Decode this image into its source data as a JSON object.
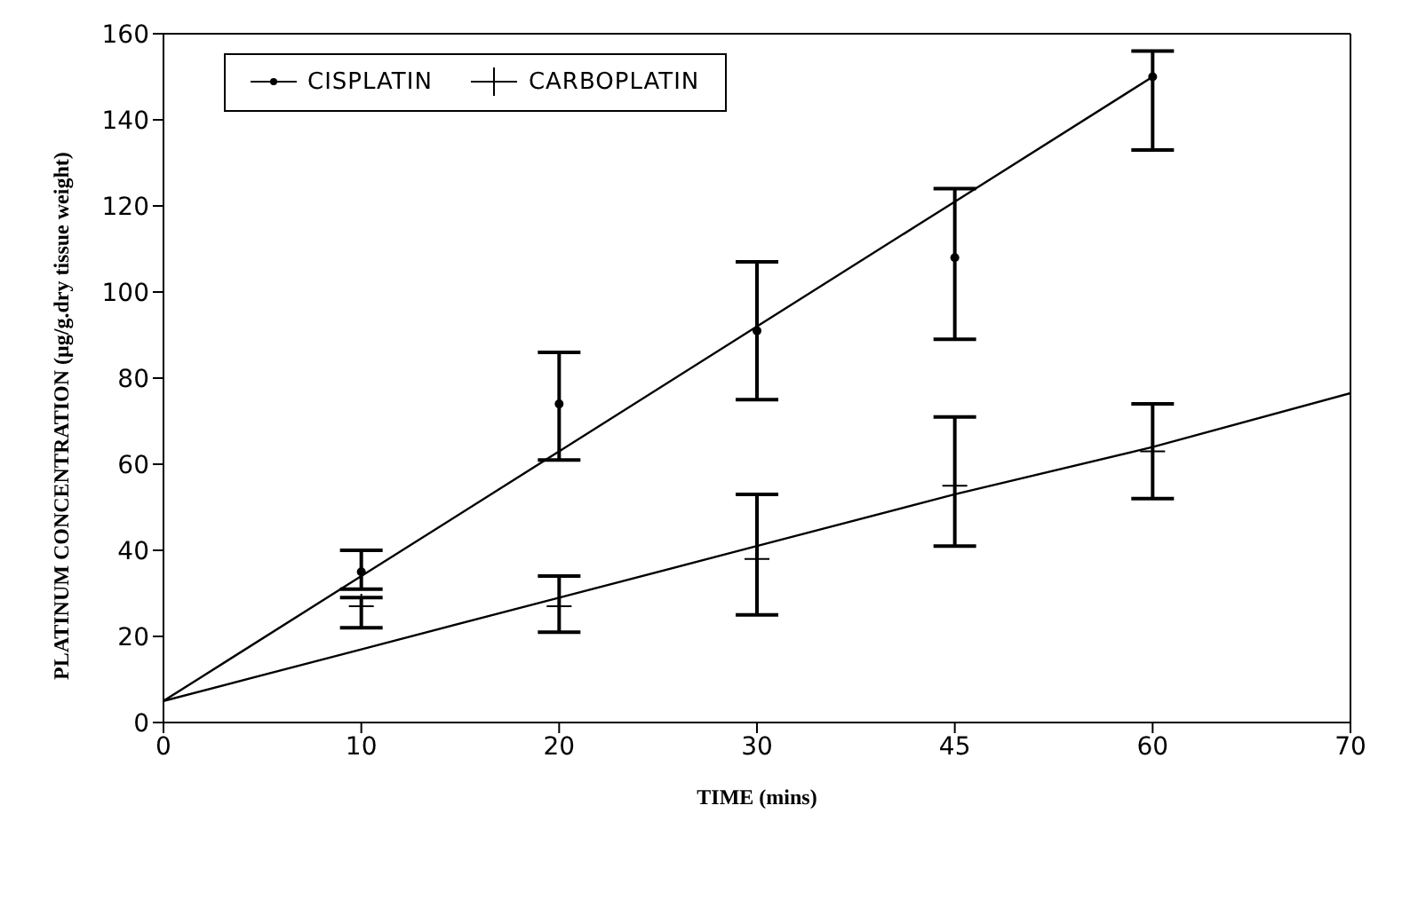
{
  "chart_data": {
    "type": "scatter",
    "xlabel": "TIME (mins)",
    "ylabel": "PLATINUM CONCENTRATION (μg/g.dry tissue weight)",
    "categories": [
      "0",
      "10",
      "20",
      "30",
      "45",
      "60",
      "70"
    ],
    "ylim": [
      0,
      160
    ],
    "yticks": [
      0,
      20,
      40,
      60,
      80,
      100,
      120,
      140,
      160
    ],
    "grid": false,
    "legend": "top left",
    "series": [
      {
        "name": "CISPLATIN",
        "marker": "circle",
        "color": "#000000",
        "values": [
          null,
          35,
          74,
          91,
          108,
          150,
          null
        ],
        "errors": [
          null,
          [
            31,
            40
          ],
          [
            61,
            86
          ],
          [
            75,
            107
          ],
          [
            89,
            124
          ],
          [
            133,
            156
          ],
          null
        ]
      },
      {
        "name": "CARBOPLATIN",
        "marker": "cross",
        "color": "#000000",
        "values": [
          null,
          27,
          27,
          38,
          55,
          63,
          null
        ],
        "errors": [
          null,
          [
            22,
            29
          ],
          [
            21,
            34
          ],
          [
            25,
            53
          ],
          [
            41,
            71
          ],
          [
            52,
            74
          ],
          null
        ]
      },
      {
        "type": "line",
        "marker": "none",
        "color": "#000000",
        "values": [
          5,
          34,
          63,
          92,
          121,
          150,
          null
        ]
      },
      {
        "type": "line",
        "marker": "none",
        "color": "#000000",
        "values": [
          5,
          17,
          29,
          41,
          53,
          64,
          76.5
        ]
      }
    ]
  }
}
